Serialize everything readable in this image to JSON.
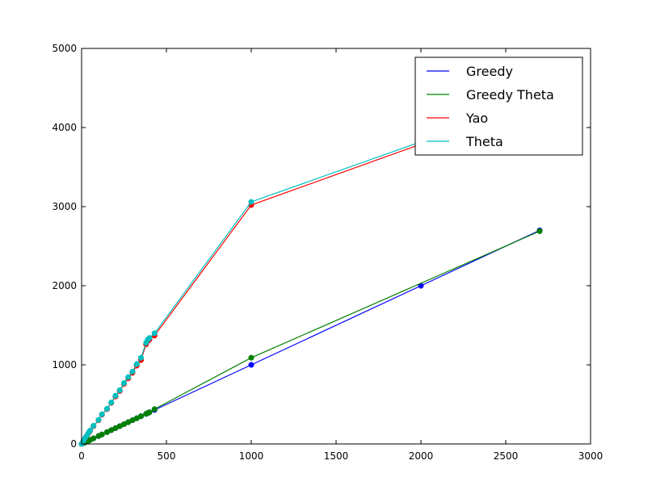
{
  "chart_data": {
    "type": "line",
    "xlim": [
      0,
      3000
    ],
    "ylim": [
      0,
      5000
    ],
    "xticks": [
      0,
      500,
      1000,
      1500,
      2000,
      2500,
      3000
    ],
    "yticks": [
      0,
      1000,
      2000,
      3000,
      4000,
      5000
    ],
    "grid": false,
    "legend_position": "top-right",
    "series": [
      {
        "name": "Greedy",
        "color": "#0000ff",
        "x": [
          0,
          10,
          20,
          30,
          40,
          50,
          70,
          100,
          120,
          150,
          175,
          200,
          225,
          250,
          275,
          300,
          325,
          350,
          380,
          390,
          400,
          430,
          1000,
          2000,
          2700
        ],
        "y": [
          0,
          10,
          20,
          30,
          40,
          50,
          70,
          100,
          120,
          150,
          175,
          200,
          225,
          250,
          275,
          300,
          325,
          350,
          380,
          390,
          400,
          430,
          1000,
          2000,
          2700
        ]
      },
      {
        "name": "Greedy Theta",
        "color": "#008000",
        "x": [
          0,
          10,
          20,
          30,
          40,
          50,
          70,
          100,
          120,
          150,
          175,
          200,
          225,
          250,
          275,
          300,
          325,
          350,
          380,
          390,
          400,
          430,
          1000,
          2700
        ],
        "y": [
          0,
          10,
          20,
          30,
          40,
          50,
          70,
          100,
          120,
          150,
          175,
          200,
          225,
          250,
          275,
          300,
          325,
          350,
          380,
          390,
          400,
          440,
          1090,
          2690
        ]
      },
      {
        "name": "Yao",
        "color": "#ff0000",
        "x": [
          0,
          10,
          20,
          30,
          40,
          50,
          70,
          100,
          120,
          150,
          175,
          200,
          225,
          250,
          275,
          300,
          325,
          350,
          380,
          390,
          400,
          430,
          1000,
          2000
        ],
        "y": [
          0,
          35,
          70,
          100,
          135,
          165,
          225,
          300,
          370,
          440,
          520,
          600,
          670,
          760,
          830,
          900,
          990,
          1060,
          1260,
          1300,
          1320,
          1370,
          3020,
          3790
        ]
      },
      {
        "name": "Theta",
        "color": "#00bfbf",
        "x": [
          0,
          10,
          20,
          30,
          40,
          50,
          70,
          100,
          120,
          150,
          175,
          200,
          225,
          250,
          275,
          300,
          325,
          350,
          380,
          390,
          400,
          430,
          1000,
          2000
        ],
        "y": [
          0,
          36,
          72,
          104,
          140,
          170,
          230,
          305,
          375,
          445,
          525,
          610,
          680,
          770,
          845,
          915,
          1010,
          1090,
          1280,
          1320,
          1340,
          1400,
          3060,
          3820
        ]
      }
    ]
  }
}
